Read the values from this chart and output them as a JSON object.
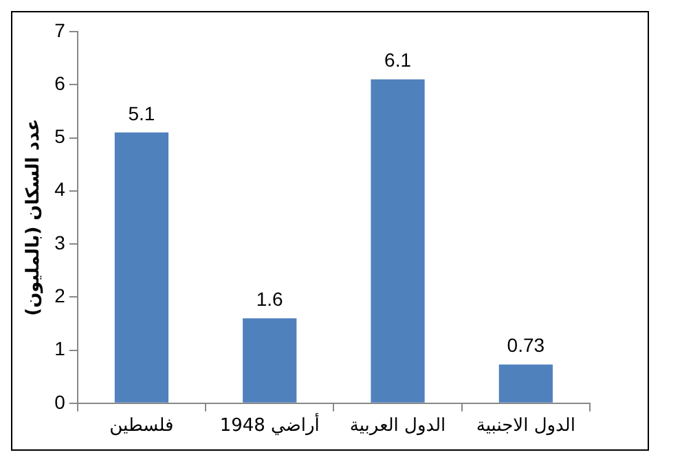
{
  "chart_data": {
    "type": "bar",
    "ylabel": "عدد السكان (بالمليون)",
    "categories": [
      "فلسطين",
      "أراضي 1948",
      "الدول العربية",
      "الدول الاجنبية"
    ],
    "values": [
      5.1,
      1.6,
      6.1,
      0.73
    ],
    "color": "#4f81bd",
    "ylim": [
      0,
      7
    ],
    "yticks": [
      0,
      1,
      2,
      3,
      4,
      5,
      6,
      7
    ],
    "grid": false,
    "legend": false,
    "data_labels": true
  }
}
